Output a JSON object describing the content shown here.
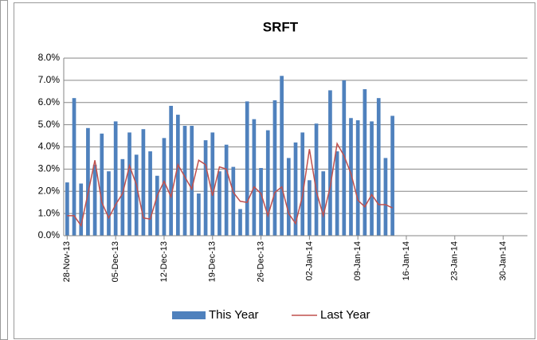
{
  "chart_data": {
    "type": "bar-line",
    "title": "SRFT",
    "categories": [
      "28-Nov-13",
      null,
      null,
      null,
      null,
      null,
      null,
      "05-Dec-13",
      null,
      null,
      null,
      null,
      null,
      null,
      "12-Dec-13",
      null,
      null,
      null,
      null,
      null,
      null,
      "19-Dec-13",
      null,
      null,
      null,
      null,
      null,
      null,
      "26-Dec-13",
      null,
      null,
      null,
      null,
      null,
      null,
      "02-Jan-14",
      null,
      null,
      null,
      null,
      null,
      null,
      "09-Jan-14",
      null,
      null,
      null,
      null,
      null,
      null,
      "16-Jan-14",
      null,
      null,
      null,
      null,
      null,
      null,
      "23-Jan-14",
      null,
      null,
      null,
      null,
      null,
      null,
      "30-Jan-14",
      null,
      null,
      null
    ],
    "series": [
      {
        "name": "This Year",
        "kind": "bar",
        "color": "#4f81bd",
        "values": [
          2.4,
          6.2,
          2.35,
          4.85,
          3.2,
          4.6,
          2.9,
          5.15,
          3.45,
          4.65,
          3.65,
          4.8,
          3.8,
          2.7,
          4.4,
          5.85,
          5.45,
          4.95,
          4.95,
          1.9,
          4.3,
          4.65,
          2.9,
          4.1,
          3.1,
          1.2,
          6.05,
          5.25,
          3.05,
          4.75,
          6.1,
          7.2,
          3.5,
          4.2,
          4.65,
          2.5,
          5.05,
          2.9,
          6.55,
          3.8,
          7.0,
          5.3,
          5.2,
          6.6,
          5.15,
          6.2,
          3.5,
          5.4,
          null,
          null,
          null,
          null,
          null,
          null,
          null,
          null,
          null,
          null,
          null,
          null,
          null,
          null,
          null,
          null,
          null,
          null,
          null
        ]
      },
      {
        "name": "Last Year",
        "kind": "line",
        "color": "#c0504d",
        "values": [
          0.9,
          0.9,
          0.45,
          1.9,
          3.4,
          1.5,
          0.8,
          1.4,
          1.9,
          3.15,
          2.3,
          0.8,
          0.75,
          1.8,
          2.45,
          1.75,
          3.2,
          2.65,
          2.1,
          3.4,
          3.2,
          1.8,
          3.1,
          3.0,
          1.95,
          1.55,
          1.5,
          2.2,
          1.9,
          0.9,
          1.95,
          2.2,
          1.0,
          0.55,
          1.8,
          3.9,
          2.0,
          0.9,
          2.2,
          4.15,
          3.6,
          2.8,
          1.6,
          1.3,
          1.85,
          1.4,
          1.4,
          1.25,
          null,
          null,
          null,
          null,
          null,
          null,
          null,
          null,
          null,
          null,
          null,
          null,
          null,
          null,
          null,
          null,
          null,
          null,
          null
        ]
      }
    ],
    "ylim": [
      0,
      8
    ],
    "yticks": [
      {
        "value": 0,
        "label": "0.0%"
      },
      {
        "value": 1,
        "label": "1.0%"
      },
      {
        "value": 2,
        "label": "2.0%"
      },
      {
        "value": 3,
        "label": "3.0%"
      },
      {
        "value": 4,
        "label": "4.0%"
      },
      {
        "value": 5,
        "label": "5.0%"
      },
      {
        "value": 6,
        "label": "6.0%"
      },
      {
        "value": 7,
        "label": "7.0%"
      },
      {
        "value": 8,
        "label": "8.0%"
      }
    ],
    "grid": true,
    "legend": "bottom"
  }
}
